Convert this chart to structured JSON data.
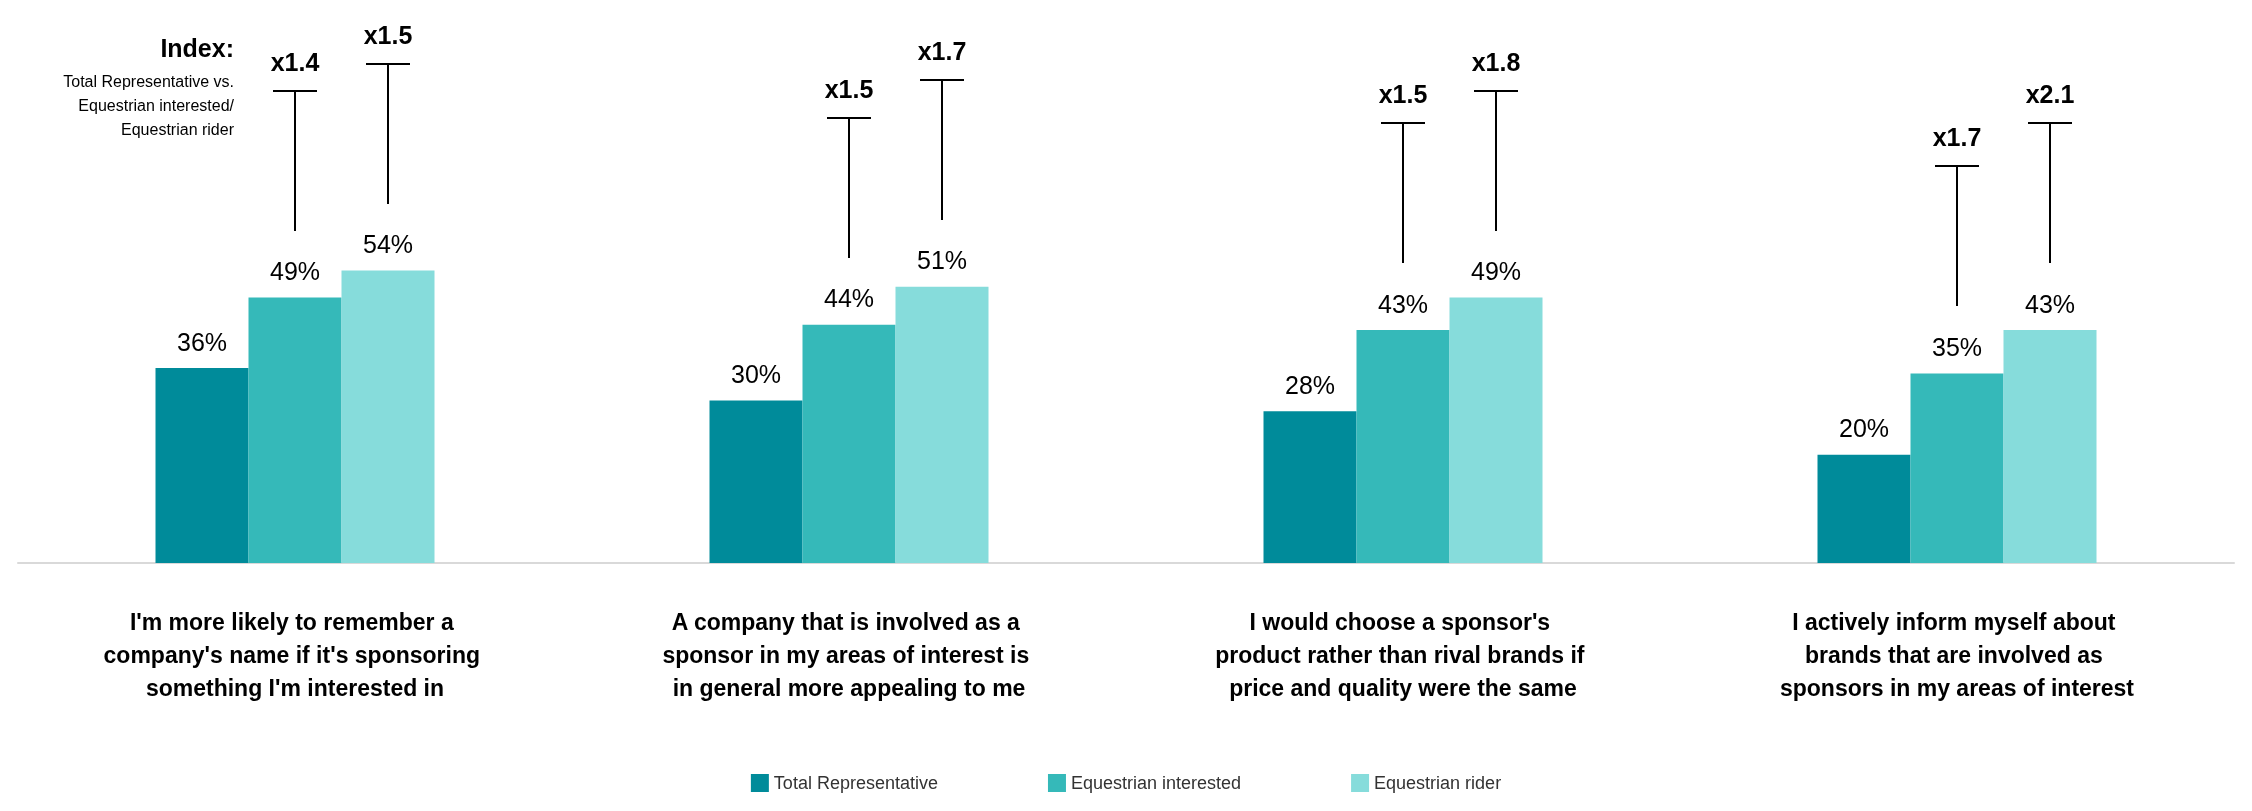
{
  "chart_data": {
    "type": "bar",
    "categories": [
      "I'm more likely to remember a company's name if it's sponsoring something I'm interested in",
      "A company that is involved as a sponsor in my areas of interest is in general more appealing to me",
      "I would choose a sponsor's product rather than rival brands if price and quality were the same",
      "I actively inform myself about brands that are involved as sponsors in my areas of interest"
    ],
    "series": [
      {
        "name": "Total Representative",
        "color": "#008b9a",
        "values": [
          36,
          30,
          28,
          20
        ],
        "value_labels": [
          "36%",
          "30%",
          "28%",
          "20%"
        ]
      },
      {
        "name": "Equestrian interested",
        "color": "#35b9b9",
        "values": [
          49,
          44,
          43,
          35
        ],
        "value_labels": [
          "49%",
          "44%",
          "43%",
          "35%"
        ]
      },
      {
        "name": "Equestrian rider",
        "color": "#86dcdb",
        "values": [
          54,
          51,
          49,
          43
        ],
        "value_labels": [
          "54%",
          "51%",
          "49%",
          "43%"
        ]
      }
    ],
    "annotations": [
      "Index:",
      "Total Representative vs. Equestrian interested/ Equestrian rider",
      "x1.4",
      "x1.5",
      "x1.5",
      "x1.7",
      "x1.5",
      "x1.8",
      "x1.7",
      "x2.1"
    ],
    "legend": "bottom",
    "grid": false
  }
}
